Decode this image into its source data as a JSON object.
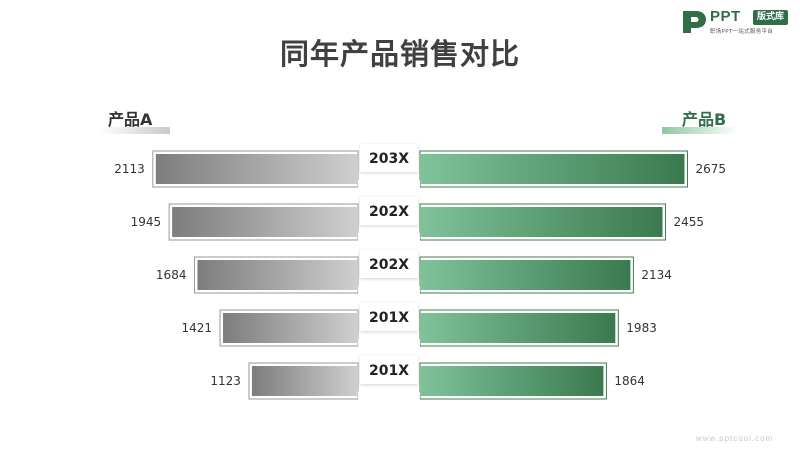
{
  "logo": {
    "name": "PPT",
    "badge": "版式库",
    "tagline": "职场PPT一站式服务平台"
  },
  "watermark": "www.pptcool.com",
  "colors": {
    "series_a": "#9a9a9a",
    "series_b": "#3e7d51",
    "accent": "#2f6e47"
  },
  "chart_data": {
    "type": "bar",
    "orientation": "horizontal-butterfly",
    "title": "同年产品销售对比",
    "categories": [
      "203X",
      "202X",
      "202X",
      "201X",
      "201X"
    ],
    "series": [
      {
        "name": "产品A",
        "values": [
          2113,
          1945,
          1684,
          1421,
          1123
        ]
      },
      {
        "name": "产品B",
        "values": [
          2675,
          2455,
          2134,
          1983,
          1864
        ]
      }
    ],
    "legend": "top",
    "grid": false
  }
}
